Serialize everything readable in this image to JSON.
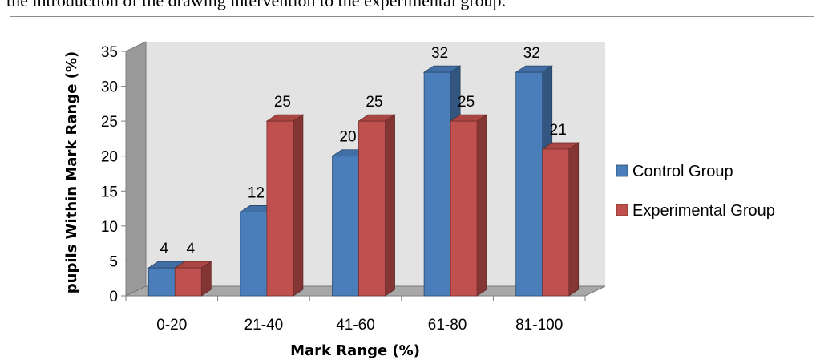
{
  "caption": "the introduction of the drawing intervention to the experimental group.",
  "chart_data": {
    "type": "bar",
    "categories": [
      "0-20",
      "21-40",
      "41-60",
      "61-80",
      "81-100"
    ],
    "series": [
      {
        "name": "Control Group",
        "values": [
          4,
          12,
          20,
          32,
          32
        ],
        "color": "#4a7ebb"
      },
      {
        "name": "Experimental Group",
        "values": [
          4,
          25,
          25,
          25,
          21
        ],
        "color": "#c0504d"
      }
    ],
    "xlabel": "Mark Range (%)",
    "ylabel": "pupils Within Mark Range (%)",
    "ylim": [
      0,
      35
    ],
    "yticks": [
      0,
      5,
      10,
      15,
      20,
      25,
      30,
      35
    ],
    "grid": false,
    "legend_position": "right",
    "three_d": true
  }
}
